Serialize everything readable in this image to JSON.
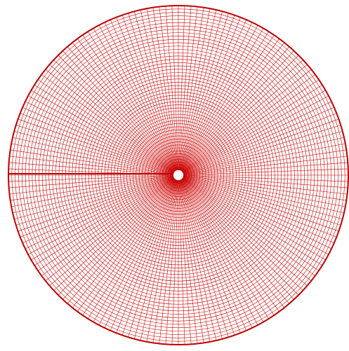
{
  "mesh": {
    "description_visible_text": "",
    "radial_divisions": 168,
    "ring_count": 52,
    "seam_direction": "left",
    "colors": {
      "line": "#cc0000",
      "outline": "#c00000",
      "background": "#ffffff"
    }
  }
}
